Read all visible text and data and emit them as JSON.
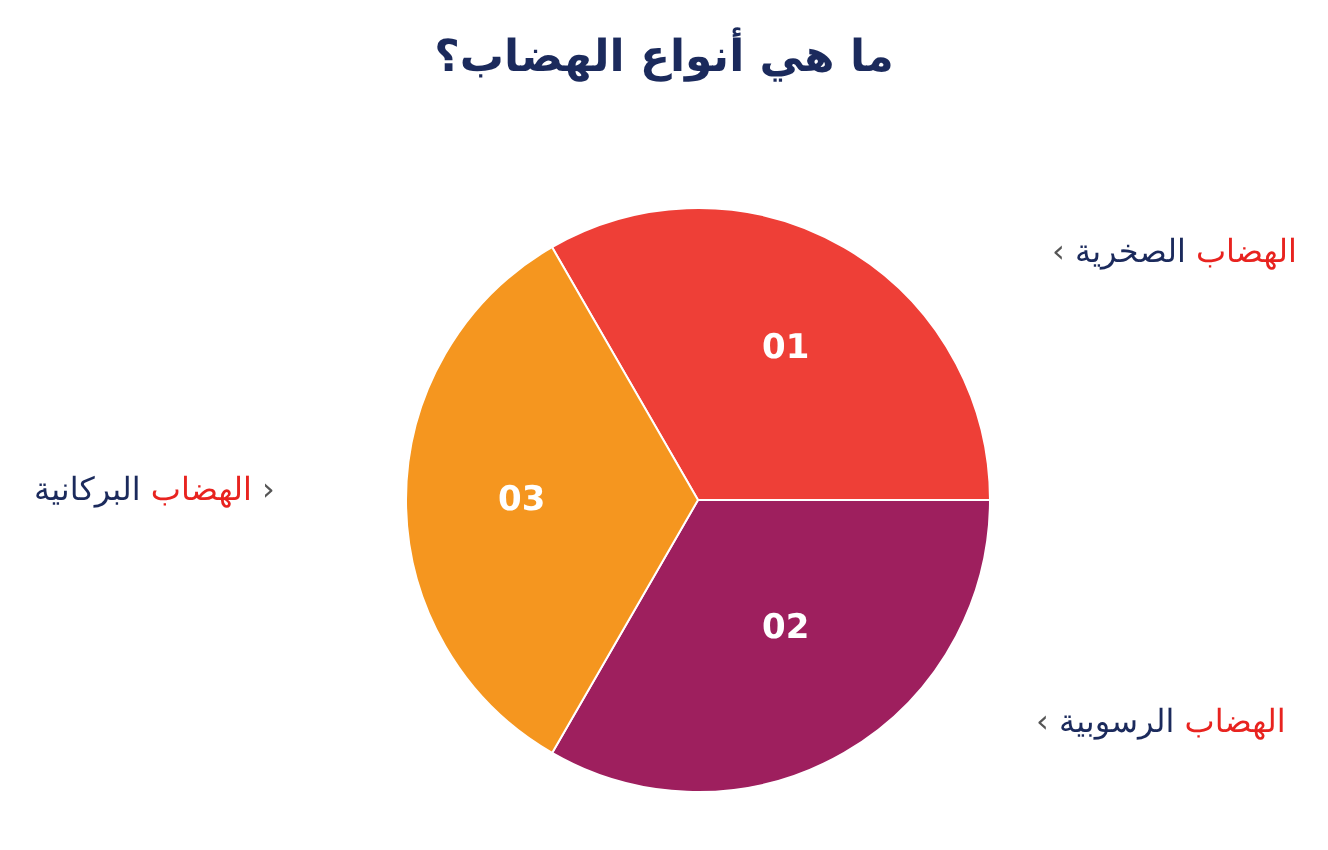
{
  "chart_data": {
    "type": "pie",
    "title": "ما هي أنواع الهضاب؟",
    "categories": [
      "‹ الهضاب الصخرية",
      "‹ الهضاب الرسوبية",
      "الهضاب البركانية ›"
    ],
    "values": [
      33.33,
      33.33,
      33.34
    ],
    "colors": [
      "#ee3f37",
      "#9e1f5e",
      "#f5961f"
    ],
    "annotations": [
      "01",
      "02",
      "03"
    ],
    "legend": false
  }
}
